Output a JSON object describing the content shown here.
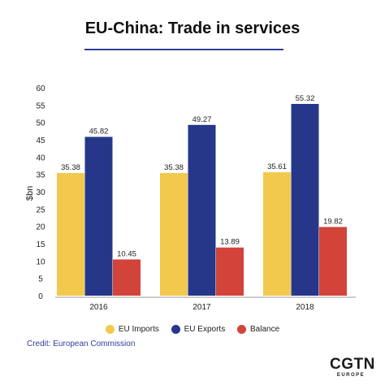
{
  "header": {
    "title": "EU-China: Trade in services"
  },
  "chart_data": {
    "type": "bar",
    "categories": [
      "2016",
      "2017",
      "2018"
    ],
    "series": [
      {
        "name": "EU Imports",
        "values": [
          35.38,
          35.38,
          35.61
        ],
        "color": "#f2c94c"
      },
      {
        "name": "EU Exports",
        "values": [
          45.82,
          49.27,
          55.32
        ],
        "color": "#26378a"
      },
      {
        "name": "Balance",
        "values": [
          10.45,
          13.89,
          19.82
        ],
        "color": "#d2443a"
      }
    ],
    "data_labels": [
      [
        "35.38",
        "45.82",
        "10.45"
      ],
      [
        "35.38",
        "49.27",
        "13.89"
      ],
      [
        "35.61",
        "55.32",
        "19.82"
      ]
    ],
    "ylabel": "$bn",
    "ylim": [
      0,
      60
    ],
    "yticks": [
      "0",
      "5",
      "10",
      "15",
      "20",
      "25",
      "30",
      "35",
      "40",
      "45",
      "50",
      "55",
      "60"
    ],
    "legend_position": "bottom",
    "grid": false
  },
  "footer": {
    "credit": "Credit: European Commission",
    "logo_main": "CGTN",
    "logo_sub": "EUROPE"
  }
}
